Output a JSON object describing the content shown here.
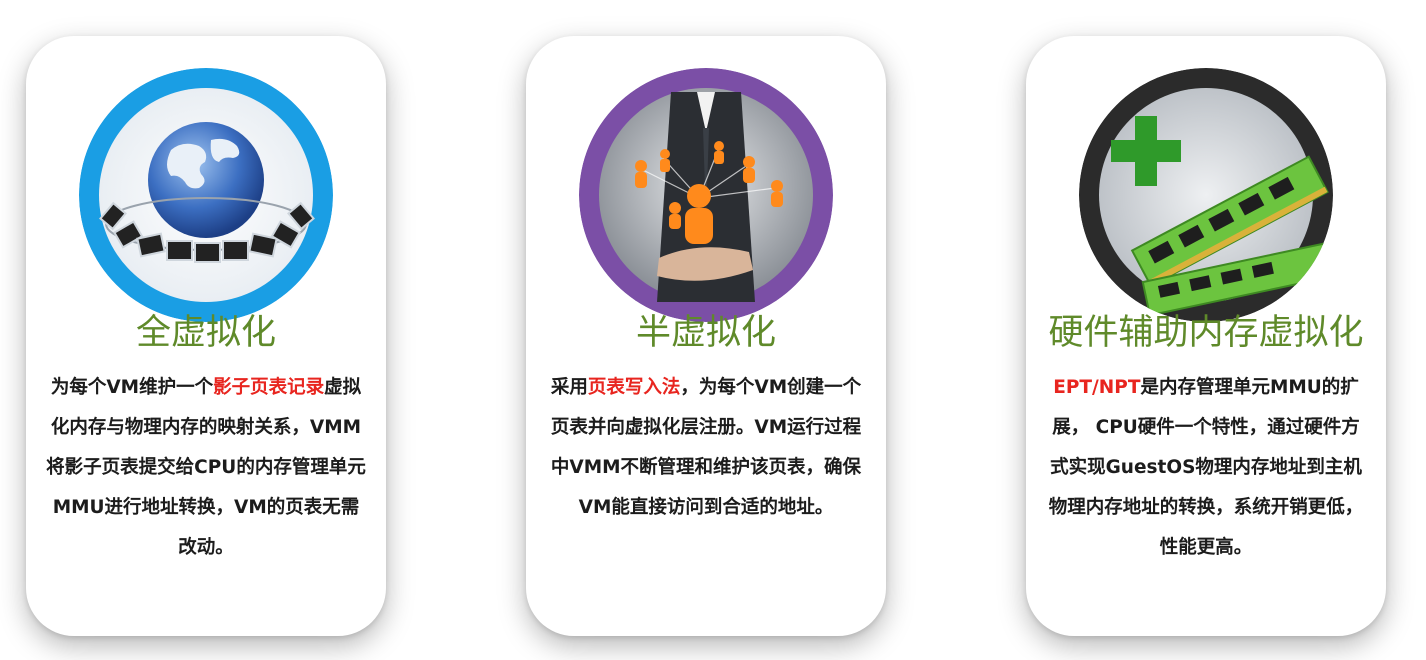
{
  "cards": [
    {
      "title": "全虚拟化",
      "ring_color": "#1a9ee4",
      "icon": "globe-network-icon",
      "desc_pre": "为每个VM维护一个",
      "desc_hl": "影子页表记录",
      "desc_post": "虚拟化内存与物理内存的映射关系，VMM将影子页表提交给CPU的内存管理单元MMU进行地址转换，VM的页表无需改动。"
    },
    {
      "title": "半虚拟化",
      "ring_color": "#7b4fa6",
      "icon": "business-network-icon",
      "desc_pre": "采用",
      "desc_hl": "页表写入法",
      "desc_post": "，为每个VM创建一个页表并向虚拟化层注册。VM运行过程中VMM不断管理和维护该页表，确保VM能直接访问到合适的地址。"
    },
    {
      "title": "硬件辅助内存虚拟化",
      "ring_color": "#2b2b2b",
      "icon": "memory-module-plus-icon",
      "desc_pre": "",
      "desc_hl": "EPT/NPT",
      "desc_post": "是内存管理单元MMU的扩展， CPU硬件一个特性，通过硬件方式实现GuestOS物理内存地址到主机物理内存地址的转换，系统开销更低，性能更高。"
    }
  ],
  "colors": {
    "title": "#5f8a2a",
    "highlight": "#e8251f",
    "text": "#1c1c1c"
  }
}
